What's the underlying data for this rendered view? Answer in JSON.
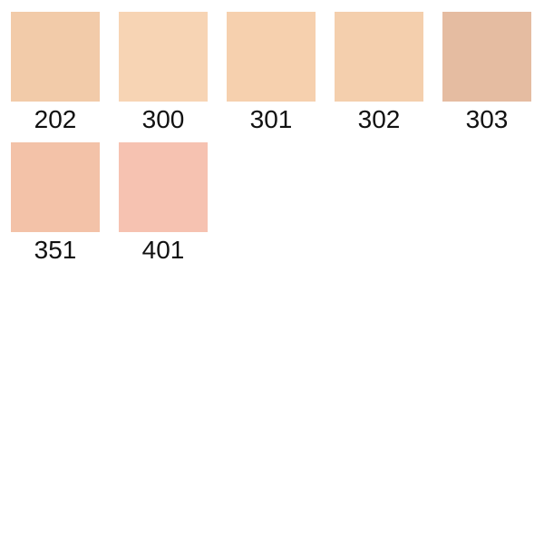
{
  "page": {
    "background": "#ffffff",
    "text_color": "#111111"
  },
  "palette": {
    "rows": [
      {
        "items": [
          {
            "code": "202",
            "color": "#F2CBA9"
          },
          {
            "code": "300",
            "color": "#F7D4B4"
          },
          {
            "code": "301",
            "color": "#F6D0AE"
          },
          {
            "code": "302",
            "color": "#F4CFAD"
          },
          {
            "code": "303",
            "color": "#E5BCA1"
          }
        ]
      },
      {
        "items": [
          {
            "code": "351",
            "color": "#F3C2A8"
          },
          {
            "code": "401",
            "color": "#F6C2B1"
          }
        ]
      }
    ]
  }
}
